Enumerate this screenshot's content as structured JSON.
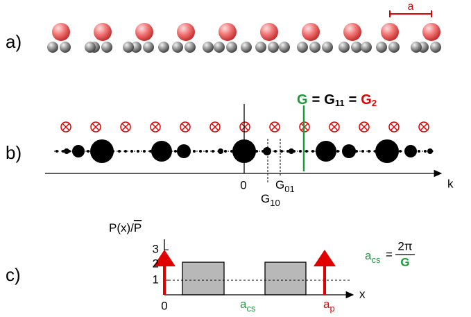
{
  "panels": {
    "a": {
      "label": "a)",
      "lattice_label": "a"
    },
    "b": {
      "label": "b)",
      "equation": {
        "g": "G",
        "eq1": "=",
        "g11_base": "G",
        "g11_sub": "11",
        "eq2": "=",
        "g2_base": "G",
        "g2_sub": "2"
      },
      "origin": "0",
      "g01": {
        "base": "G",
        "sub": "01"
      },
      "g10": {
        "base": "G",
        "sub": "10"
      },
      "axis": "k"
    },
    "c": {
      "label": "c)",
      "y_label": "P(x)/",
      "y_label_bar": "P",
      "ticks": [
        "3",
        "2",
        "1",
        "0"
      ],
      "a_cs": {
        "base": "a",
        "sub": "cs"
      },
      "a_p": {
        "base": "a",
        "sub": "p"
      },
      "axis": "x",
      "formula": {
        "lhs_base": "a",
        "lhs_sub": "cs",
        "eq": "=",
        "num": "2π",
        "den": "G"
      }
    }
  }
}
